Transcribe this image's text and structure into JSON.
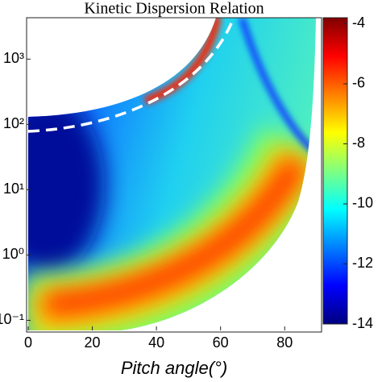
{
  "chart_data": {
    "type": "heatmap",
    "title": "Kinetic Dispersion Relation",
    "xlabel": "Pitch angle(°)",
    "xlim": [
      0,
      91
    ],
    "xticks": [
      0,
      20,
      40,
      60,
      80
    ],
    "ylim": [
      0.07,
      4300
    ],
    "log_y": true,
    "yticks": [
      {
        "value": 1000,
        "label": "10³"
      },
      {
        "value": 100,
        "label": "10²"
      },
      {
        "value": 10,
        "label": "10¹"
      },
      {
        "value": 1,
        "label": "10⁰"
      },
      {
        "value": 0.1,
        "label": "10⁻¹"
      }
    ],
    "clim": [
      -14,
      -3.8
    ],
    "cticks": [
      {
        "value": -4,
        "label": "-4"
      },
      {
        "value": -6,
        "label": "-6"
      },
      {
        "value": -8,
        "label": "-8"
      },
      {
        "value": -10,
        "label": "-10"
      },
      {
        "value": -12,
        "label": "-12"
      },
      {
        "value": -14,
        "label": "-14"
      }
    ],
    "colormap": "jet"
  }
}
